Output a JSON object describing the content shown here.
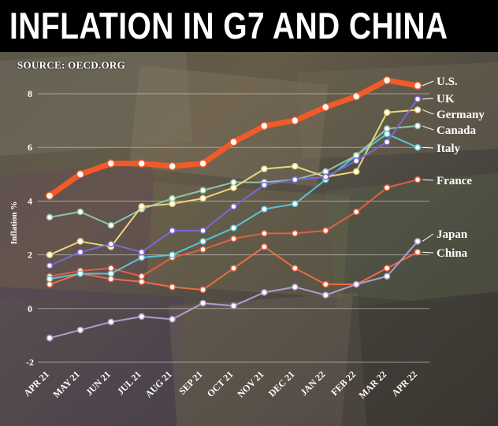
{
  "title": "INFLATION IN G7 AND CHINA",
  "source": "SOURCE: OECD.ORG",
  "colors": {
    "title_bar": "#000000",
    "gridline": "#cfcfcf",
    "text": "#ffffff"
  },
  "chart_data": {
    "type": "line",
    "title": "INFLATION IN G7 AND CHINA",
    "xlabel": "",
    "ylabel": "Inflation %",
    "ylim": [
      -2,
      8
    ],
    "yticks": [
      -2,
      0,
      2,
      4,
      6,
      8
    ],
    "grid": true,
    "legend_placement": "right (labels at line ends)",
    "categories": [
      "APR 21",
      "MAY 21",
      "JUN 21",
      "JUL 21",
      "AUG 21",
      "SEP 21",
      "OCT 21",
      "NOV 21",
      "DEC 21",
      "JAN 22",
      "FEB 22",
      "MAR 22",
      "APR 22"
    ],
    "series": [
      {
        "name": "U.S.",
        "color": "#f25a28",
        "values": [
          4.2,
          5.0,
          5.4,
          5.4,
          5.3,
          5.4,
          6.2,
          6.8,
          7.0,
          7.5,
          7.9,
          8.5,
          8.3
        ]
      },
      {
        "name": "UK",
        "color": "#7b68d6",
        "values": [
          1.6,
          2.1,
          2.4,
          2.1,
          2.9,
          2.9,
          3.8,
          4.6,
          4.8,
          4.9,
          5.5,
          6.2,
          7.8
        ]
      },
      {
        "name": "Germany",
        "color": "#e8d67a",
        "values": [
          2.0,
          2.5,
          2.3,
          3.8,
          3.9,
          4.1,
          4.5,
          5.2,
          5.3,
          4.9,
          5.1,
          7.3,
          7.4
        ]
      },
      {
        "name": "Canada",
        "color": "#8fc5a8",
        "values": [
          3.4,
          3.6,
          3.1,
          3.7,
          4.1,
          4.4,
          4.7,
          4.7,
          4.8,
          5.1,
          5.7,
          6.7,
          6.8
        ]
      },
      {
        "name": "Italy",
        "color": "#5cc3d6",
        "values": [
          1.1,
          1.3,
          1.3,
          1.9,
          2.0,
          2.5,
          3.0,
          3.7,
          3.9,
          4.8,
          5.7,
          6.5,
          6.0
        ]
      },
      {
        "name": "France",
        "color": "#e0603f",
        "values": [
          1.2,
          1.4,
          1.5,
          1.2,
          1.9,
          2.2,
          2.6,
          2.8,
          2.8,
          2.9,
          3.6,
          4.5,
          4.8
        ]
      },
      {
        "name": "Japan",
        "color": "#b59ad0",
        "values": [
          -1.1,
          -0.8,
          -0.5,
          -0.3,
          -0.4,
          0.2,
          0.1,
          0.6,
          0.8,
          0.5,
          0.9,
          1.2,
          2.5
        ]
      },
      {
        "name": "China",
        "color": "#ee6a43",
        "values": [
          0.9,
          1.3,
          1.1,
          1.0,
          0.8,
          0.7,
          1.5,
          2.3,
          1.5,
          0.9,
          0.9,
          1.5,
          2.1
        ]
      }
    ]
  }
}
